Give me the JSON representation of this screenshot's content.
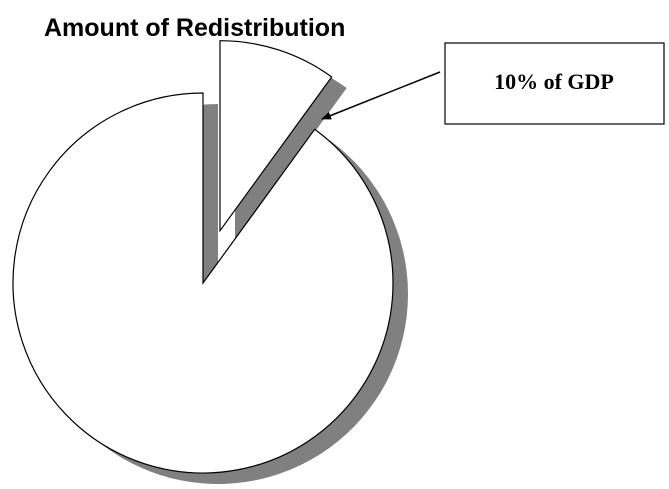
{
  "chart_data": {
    "type": "pie",
    "title": "Amount of Redistribution",
    "values": [
      10,
      90
    ],
    "color": "#ffffff",
    "shadow_color": "#808080",
    "annotation": "10% of GDP"
  }
}
